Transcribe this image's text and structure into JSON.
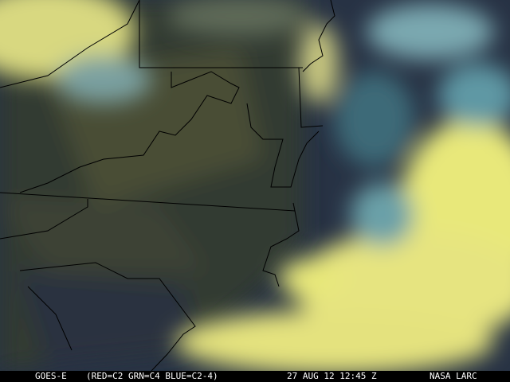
{
  "caption": {
    "satellite": "GOES-E",
    "channels": "(RED=C2 GRN=C4 BLUE=C2-4)",
    "datetime": "27 AUG 12 12:45 Z",
    "source": "NASA LARC"
  },
  "colors": {
    "cloud": "#e8e87a",
    "ocean": "#1e2a3c",
    "land": "#3a4030",
    "border": "#000000"
  }
}
